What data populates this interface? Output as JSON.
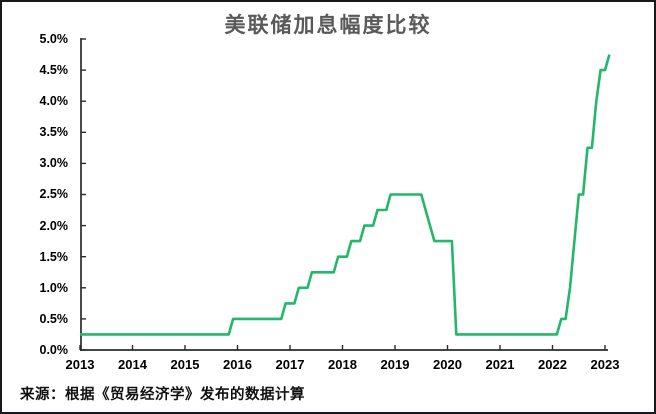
{
  "chart_data": {
    "type": "line",
    "title": "美联储加息幅度比较",
    "source_note": "来源：根据《贸易经济学》发布的数据计算",
    "line_color": "#23b76a",
    "axis_color": "#2b2b2b",
    "grid": false,
    "legend_position": "none",
    "ylabel": "",
    "xlabel": "",
    "ylim": [
      0,
      5
    ],
    "y_tick_labels": [
      "5.0%",
      "4.5%",
      "4.0%",
      "3.5%",
      "3.0%",
      "2.5%",
      "2.0%",
      "1.5%",
      "1.0%",
      "0.5%",
      "0.0%"
    ],
    "x_tick_labels": [
      "2013",
      "2014",
      "2015",
      "2016",
      "2017",
      "2018",
      "2019",
      "2020",
      "2021",
      "2022",
      "2023"
    ],
    "series": [
      {
        "start": "2013-01",
        "frequency": "monthly",
        "unit": "%",
        "values": [
          0.25,
          0.25,
          0.25,
          0.25,
          0.25,
          0.25,
          0.25,
          0.25,
          0.25,
          0.25,
          0.25,
          0.25,
          0.25,
          0.25,
          0.25,
          0.25,
          0.25,
          0.25,
          0.25,
          0.25,
          0.25,
          0.25,
          0.25,
          0.25,
          0.25,
          0.25,
          0.25,
          0.25,
          0.25,
          0.25,
          0.25,
          0.25,
          0.25,
          0.25,
          0.25,
          0.5,
          0.5,
          0.5,
          0.5,
          0.5,
          0.5,
          0.5,
          0.5,
          0.5,
          0.5,
          0.5,
          0.5,
          0.75,
          0.75,
          0.75,
          1.0,
          1.0,
          1.0,
          1.25,
          1.25,
          1.25,
          1.25,
          1.25,
          1.25,
          1.5,
          1.5,
          1.5,
          1.75,
          1.75,
          1.75,
          2.0,
          2.0,
          2.0,
          2.25,
          2.25,
          2.25,
          2.5,
          2.5,
          2.5,
          2.5,
          2.5,
          2.5,
          2.5,
          2.5,
          2.25,
          2.0,
          1.75,
          1.75,
          1.75,
          1.75,
          1.75,
          0.25,
          0.25,
          0.25,
          0.25,
          0.25,
          0.25,
          0.25,
          0.25,
          0.25,
          0.25,
          0.25,
          0.25,
          0.25,
          0.25,
          0.25,
          0.25,
          0.25,
          0.25,
          0.25,
          0.25,
          0.25,
          0.25,
          0.25,
          0.25,
          0.5,
          0.5,
          1.0,
          1.75,
          2.5,
          2.5,
          3.25,
          3.25,
          4.0,
          4.5,
          4.5,
          4.75
        ]
      }
    ]
  }
}
